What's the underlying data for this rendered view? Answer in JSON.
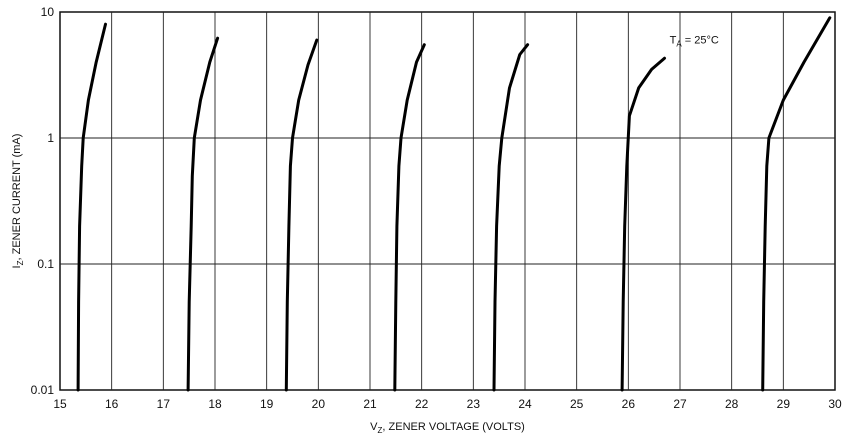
{
  "chart_data": {
    "type": "line",
    "title": "",
    "xlabel": {
      "main": "V",
      "sub": "Z",
      "rest": ", ZENER VOLTAGE (VOLTS)"
    },
    "ylabel": {
      "main": "I",
      "sub": "Z",
      "rest": ", ZENER CURRENT (mA)"
    },
    "x_scale": "linear",
    "y_scale": "log",
    "xlim": [
      15,
      30
    ],
    "ylim": [
      0.01,
      10
    ],
    "x_ticks": [
      "15",
      "16",
      "17",
      "18",
      "19",
      "20",
      "21",
      "22",
      "23",
      "24",
      "25",
      "26",
      "27",
      "28",
      "29",
      "30"
    ],
    "y_ticks": [
      "0.01",
      "0.1",
      "1",
      "10"
    ],
    "grid": true,
    "annotation": {
      "main": "T",
      "sub": "A",
      "rest": " = 25°C",
      "x": 26.8,
      "y": 5.6
    },
    "series": [
      {
        "points": [
          [
            15.35,
            0.01
          ],
          [
            15.36,
            0.05
          ],
          [
            15.38,
            0.2
          ],
          [
            15.42,
            0.6
          ],
          [
            15.45,
            1.0
          ],
          [
            15.55,
            2.0
          ],
          [
            15.7,
            4.0
          ],
          [
            15.88,
            8.0
          ]
        ]
      },
      {
        "points": [
          [
            17.48,
            0.01
          ],
          [
            17.5,
            0.05
          ],
          [
            17.54,
            0.2
          ],
          [
            17.56,
            0.5
          ],
          [
            17.6,
            1.0
          ],
          [
            17.72,
            2.0
          ],
          [
            17.9,
            4.0
          ],
          [
            18.05,
            6.2
          ]
        ]
      },
      {
        "points": [
          [
            19.38,
            0.01
          ],
          [
            19.4,
            0.05
          ],
          [
            19.43,
            0.2
          ],
          [
            19.46,
            0.6
          ],
          [
            19.5,
            1.0
          ],
          [
            19.62,
            2.0
          ],
          [
            19.8,
            3.8
          ],
          [
            19.97,
            6.0
          ]
        ]
      },
      {
        "points": [
          [
            21.48,
            0.01
          ],
          [
            21.5,
            0.05
          ],
          [
            21.52,
            0.2
          ],
          [
            21.56,
            0.6
          ],
          [
            21.6,
            1.0
          ],
          [
            21.72,
            2.0
          ],
          [
            21.9,
            4.0
          ],
          [
            22.05,
            5.5
          ]
        ]
      },
      {
        "points": [
          [
            23.4,
            0.01
          ],
          [
            23.42,
            0.05
          ],
          [
            23.45,
            0.2
          ],
          [
            23.5,
            0.6
          ],
          [
            23.55,
            1.0
          ],
          [
            23.7,
            2.5
          ],
          [
            23.9,
            4.6
          ],
          [
            24.05,
            5.5
          ]
        ]
      },
      {
        "points": [
          [
            25.88,
            0.01
          ],
          [
            25.9,
            0.05
          ],
          [
            25.93,
            0.2
          ],
          [
            25.97,
            0.6
          ],
          [
            26.02,
            1.5
          ],
          [
            26.2,
            2.5
          ],
          [
            26.45,
            3.5
          ],
          [
            26.7,
            4.3
          ]
        ]
      },
      {
        "points": [
          [
            28.6,
            0.01
          ],
          [
            28.62,
            0.05
          ],
          [
            28.65,
            0.2
          ],
          [
            28.68,
            0.6
          ],
          [
            28.72,
            1.0
          ],
          [
            29.0,
            2.0
          ],
          [
            29.4,
            4.0
          ],
          [
            29.9,
            9.0
          ]
        ]
      }
    ]
  }
}
